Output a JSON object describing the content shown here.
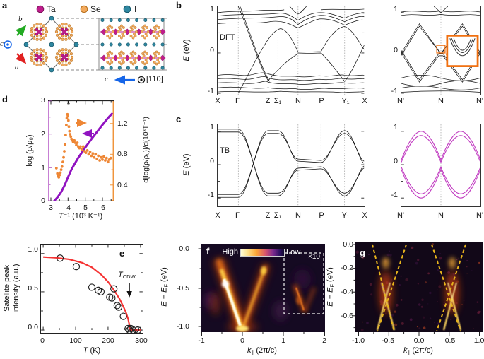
{
  "figure": {
    "panel_labels": {
      "a": "a",
      "b": "b",
      "c": "c",
      "d": "d",
      "e": "e",
      "f": "f",
      "g": "g"
    },
    "a": {
      "legend": [
        {
          "label": "Ta",
          "color": "#bf1d8d"
        },
        {
          "label": "Se",
          "color": "#f2a95c"
        },
        {
          "label": "I",
          "color": "#2f87a0"
        }
      ],
      "axis_b": "b",
      "axis_a": "a",
      "axis_c": "c",
      "view_c": "c",
      "view_dir": "[110]"
    },
    "b": {
      "method": "DFT",
      "ylabel_main": "E",
      "ylabel_unit": " (eV)",
      "yticks": [
        "1",
        "0",
        "-1"
      ],
      "kpath": [
        "X",
        "Γ",
        "Z",
        "Σ₁",
        "N",
        "P",
        "Y₁",
        "X"
      ],
      "right": {
        "yticks": [
          "1",
          "0",
          "-1"
        ],
        "kpath": [
          "N'",
          "N",
          "N'"
        ]
      }
    },
    "c": {
      "method": "TB",
      "ylabel_main": "E",
      "ylabel_unit": " (eV)",
      "yticks": [
        "1",
        "0",
        "-1"
      ],
      "kpath": [
        "X",
        "Γ",
        "Z",
        "Σ₁",
        "N",
        "P",
        "Y₁",
        "X"
      ],
      "right": {
        "yticks": [
          "1",
          "0",
          "-1"
        ],
        "kpath": [
          "N'",
          "N",
          "N'"
        ]
      }
    },
    "d": {
      "ylabel_left": "log (ρ/ρ₀)",
      "ylabel_right": "d[log(ρ/ρ₀)]/d(10³T⁻¹)",
      "xlabel_pre": "T",
      "xlabel_post": "⁻¹ (10³ K⁻¹)",
      "yticks_left": [
        "3",
        "2",
        "1",
        "0"
      ],
      "yticks_right": [
        "1.2",
        "0.8",
        "0.4"
      ],
      "xticks": [
        "3",
        "4",
        "5",
        "6"
      ],
      "star": "*"
    },
    "e": {
      "ylabel_line1": "Satellite peak",
      "ylabel_line2": "intensity (a.u.)",
      "xlabel_pre": "T",
      "xlabel_post": " (K)",
      "yticks": [
        "1.0",
        "0.5",
        "0.0"
      ],
      "xticks": [
        "0",
        "100",
        "200",
        "300"
      ],
      "annotation_main": "T",
      "annotation_sub": "CDW"
    },
    "f": {
      "colorbar_high": "High",
      "colorbar_low": "Low",
      "inset_label": "×10",
      "ylabel_pre": "E − E",
      "ylabel_sub": "F",
      "ylabel_post": " (eV)",
      "yticks": [
        "0.0",
        "-0.5",
        "-1.0"
      ],
      "xticks": [
        "-1",
        "0",
        "1",
        "2"
      ],
      "xlabel_pre": "k",
      "xlabel_sub": "∥",
      "xlabel_post": " (2π/c)"
    },
    "g": {
      "ylabel_pre": "E − E",
      "ylabel_sub": "F",
      "ylabel_post": " (eV)",
      "yticks": [
        "0.0",
        "-0.2",
        "-0.4",
        "-0.6"
      ],
      "xticks": [
        "-1.0",
        "-0.5",
        "0.0",
        "0.5",
        "1.0"
      ],
      "xlabel_pre": "k",
      "xlabel_sub": "∥",
      "xlabel_post": " (2π/c)"
    }
  },
  "colors": {
    "curve_purple": "#9012c0",
    "data_orange": "#ee8634",
    "fit_red": "#f53232",
    "band_magenta": "#c13cc1",
    "dash_yellow": "#e7b41c",
    "orange_box": "#f07010",
    "atom_ta": "#bf1d8d",
    "atom_se": "#f2a95c",
    "atom_i": "#2f87a0",
    "axis_left_d": "#c77fd4",
    "axis_right_d": "#f0953c"
  },
  "chart_data": [
    {
      "id": "panel-d",
      "type": "line",
      "xlabel": "T⁻¹ (10³ K⁻¹)",
      "xlim": [
        2.85,
        6.7
      ],
      "ylim_left": [
        0,
        3
      ],
      "ylim_right": [
        0.27,
        1.47
      ],
      "peak_marker": {
        "x": 4.0,
        "symbol": "*"
      },
      "series": [
        {
          "name": "log(ρ/ρ₀)",
          "axis": "left",
          "color": "#9012c0",
          "x": [
            3.2,
            3.4,
            3.6,
            3.8,
            4.0,
            4.2,
            4.4,
            4.6,
            4.8,
            5.0,
            5.2,
            5.4,
            5.6,
            5.8,
            6.0,
            6.2,
            6.4,
            6.55
          ],
          "y": [
            0.02,
            0.13,
            0.28,
            0.48,
            0.72,
            0.95,
            1.13,
            1.3,
            1.45,
            1.6,
            1.74,
            1.88,
            2.01,
            2.14,
            2.27,
            2.4,
            2.52,
            2.6
          ]
        },
        {
          "name": "d[log(ρ/ρ₀)]/d(10³T⁻¹)",
          "axis": "right",
          "color": "#ee8634",
          "x": [
            3.32,
            3.38,
            3.42,
            3.46,
            3.5,
            3.55,
            3.6,
            3.65,
            3.7,
            3.74,
            3.78,
            3.82,
            3.86,
            3.9,
            3.93,
            3.96,
            3.99,
            4.02,
            4.05,
            4.08,
            4.12,
            4.16,
            4.2,
            4.25,
            4.3,
            4.36,
            4.42,
            4.48,
            4.54,
            4.6,
            4.66,
            4.72,
            4.8,
            4.88,
            4.96,
            5.04,
            5.12,
            5.2,
            5.28,
            5.36,
            5.44,
            5.52,
            5.6,
            5.68,
            5.76,
            5.84,
            5.92,
            6.0,
            6.08,
            6.16,
            6.24,
            6.32,
            6.4,
            6.48
          ],
          "y": [
            0.62,
            0.55,
            0.52,
            0.5,
            0.53,
            0.56,
            0.6,
            0.64,
            0.7,
            0.76,
            0.84,
            0.93,
            1.05,
            1.18,
            1.27,
            1.32,
            1.3,
            1.24,
            1.16,
            1.1,
            1.06,
            1.03,
            1.0,
            0.98,
            0.96,
            0.98,
            0.95,
            0.92,
            0.95,
            0.9,
            0.88,
            0.9,
            0.86,
            0.9,
            0.84,
            0.82,
            0.85,
            0.8,
            0.83,
            0.78,
            0.81,
            0.76,
            0.8,
            0.74,
            0.78,
            0.72,
            0.76,
            0.73,
            0.77,
            0.72,
            0.75,
            0.7,
            0.73,
            0.75
          ]
        }
      ]
    },
    {
      "id": "panel-e",
      "type": "scatter",
      "xlabel": "T (K)",
      "ylabel": "Satellite peak intensity (a.u.)",
      "xlim": [
        -8,
        308
      ],
      "ylim": [
        -0.02,
        1.12
      ],
      "tcdw_x": 268,
      "scatter_x": [
        52,
        102,
        150,
        170,
        178,
        205,
        212,
        218,
        228,
        233,
        247,
        262,
        266,
        270,
        277,
        285,
        292
      ],
      "scatter_y": [
        0.94,
        0.83,
        0.56,
        0.52,
        0.5,
        0.43,
        0.42,
        0.54,
        0.32,
        0.3,
        0.18,
        0.02,
        0.0,
        0.02,
        0.0,
        0.01,
        0.0
      ],
      "fit_color": "#f53232",
      "fit_x": [
        0,
        40,
        80,
        120,
        150,
        180,
        200,
        220,
        235,
        248,
        256,
        262,
        266,
        268,
        300
      ],
      "fit_y": [
        0.955,
        0.945,
        0.925,
        0.88,
        0.82,
        0.72,
        0.63,
        0.51,
        0.41,
        0.3,
        0.22,
        0.14,
        0.06,
        0.0,
        0.0
      ]
    }
  ]
}
